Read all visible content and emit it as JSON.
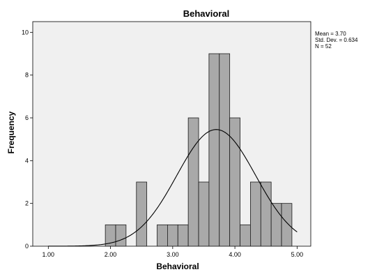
{
  "chart_data": {
    "type": "bar",
    "title": "Behavioral",
    "xlabel": "Behavioral",
    "ylabel": "Frequency",
    "xlim": [
      0.75,
      5.22
    ],
    "ylim": [
      0,
      10.5
    ],
    "x_ticks": [
      "1.00",
      "2.00",
      "3.00",
      "4.00",
      "5.00"
    ],
    "y_ticks": [
      "0",
      "2",
      "4",
      "6",
      "8",
      "10"
    ],
    "bin_width": 0.1667,
    "bins": [
      {
        "start": 1.9167,
        "end": 2.0833,
        "count": 1
      },
      {
        "start": 2.0833,
        "end": 2.25,
        "count": 1
      },
      {
        "start": 2.4167,
        "end": 2.5833,
        "count": 3
      },
      {
        "start": 2.75,
        "end": 2.9167,
        "count": 1
      },
      {
        "start": 2.9167,
        "end": 3.0833,
        "count": 1
      },
      {
        "start": 3.0833,
        "end": 3.25,
        "count": 1
      },
      {
        "start": 3.25,
        "end": 3.4167,
        "count": 6
      },
      {
        "start": 3.4167,
        "end": 3.5833,
        "count": 3
      },
      {
        "start": 3.5833,
        "end": 3.75,
        "count": 9
      },
      {
        "start": 3.75,
        "end": 3.9167,
        "count": 9
      },
      {
        "start": 3.9167,
        "end": 4.0833,
        "count": 6
      },
      {
        "start": 4.0833,
        "end": 4.25,
        "count": 1
      },
      {
        "start": 4.25,
        "end": 4.4167,
        "count": 3
      },
      {
        "start": 4.4167,
        "end": 4.5833,
        "count": 3
      },
      {
        "start": 4.5833,
        "end": 4.75,
        "count": 2
      },
      {
        "start": 4.75,
        "end": 4.9167,
        "count": 2
      }
    ],
    "normal_curve": {
      "mean": 3.7,
      "sd": 0.634,
      "n": 52
    },
    "stats_text": [
      "Mean = 3.70",
      "Std. Dev. = 0.634",
      "N = 52"
    ],
    "colors": {
      "plot_bg": "#f0f0f0",
      "bar_fill": "#a9a9a9",
      "bar_stroke": "#1a1a1a",
      "curve": "#000000"
    }
  }
}
